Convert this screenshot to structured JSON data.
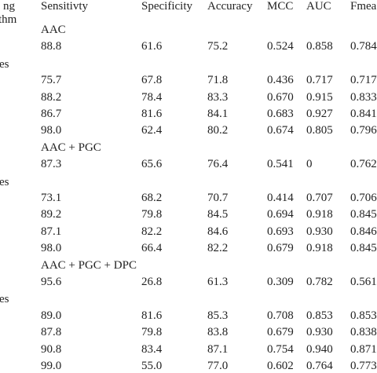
{
  "header": {
    "lines": [
      "ng",
      "thm"
    ],
    "columns": [
      "Sensitivty",
      "Specificity",
      "Accuracy",
      "MCC",
      "AUC",
      "Fmea"
    ]
  },
  "sections": [
    {
      "feature": "AAC",
      "first": [
        "88.8",
        "61.6",
        "75.2",
        "0.524",
        "0.858",
        "0.784"
      ],
      "group": "es",
      "rows": [
        [
          "75.7",
          "67.8",
          "71.8",
          "0.436",
          "0.717",
          "0.717"
        ],
        [
          "88.2",
          "78.4",
          "83.3",
          "0.670",
          "0.915",
          "0.833"
        ],
        [
          "86.7",
          "81.6",
          "84.1",
          "0.683",
          "0.927",
          "0.841"
        ],
        [
          "98.0",
          "62.4",
          "80.2",
          "0.674",
          "0.805",
          "0.796"
        ]
      ]
    },
    {
      "feature": "AAC + PGC",
      "first": [
        "87.3",
        "65.6",
        "76.4",
        "0.541",
        "0",
        "0.762"
      ],
      "group": "es",
      "rows": [
        [
          "73.1",
          "68.2",
          "70.7",
          "0.414",
          "0.707",
          "0.706"
        ],
        [
          "89.2",
          "79.8",
          "84.5",
          "0.694",
          "0.918",
          "0.845"
        ],
        [
          "87.1",
          "82.2",
          "84.6",
          "0.693",
          "0.930",
          "0.846"
        ],
        [
          "98.0",
          "66.4",
          "82.2",
          "0.679",
          "0.918",
          "0.845"
        ]
      ]
    },
    {
      "feature": "AAC + PGC + DPC",
      "first": [
        "95.6",
        "26.8",
        "61.3",
        "0.309",
        "0.782",
        "0.561"
      ],
      "group": "es",
      "rows": [
        [
          "89.0",
          "81.6",
          "85.3",
          "0.708",
          "0.853",
          "0.853"
        ],
        [
          "87.8",
          "79.8",
          "83.8",
          "0.679",
          "0.930",
          "0.838"
        ],
        [
          "90.8",
          "83.4",
          "87.1",
          "0.754",
          "0.940",
          "0.871"
        ],
        [
          "99.0",
          "55.0",
          "77.0",
          "0.602",
          "0.764",
          "0.773"
        ]
      ]
    }
  ]
}
